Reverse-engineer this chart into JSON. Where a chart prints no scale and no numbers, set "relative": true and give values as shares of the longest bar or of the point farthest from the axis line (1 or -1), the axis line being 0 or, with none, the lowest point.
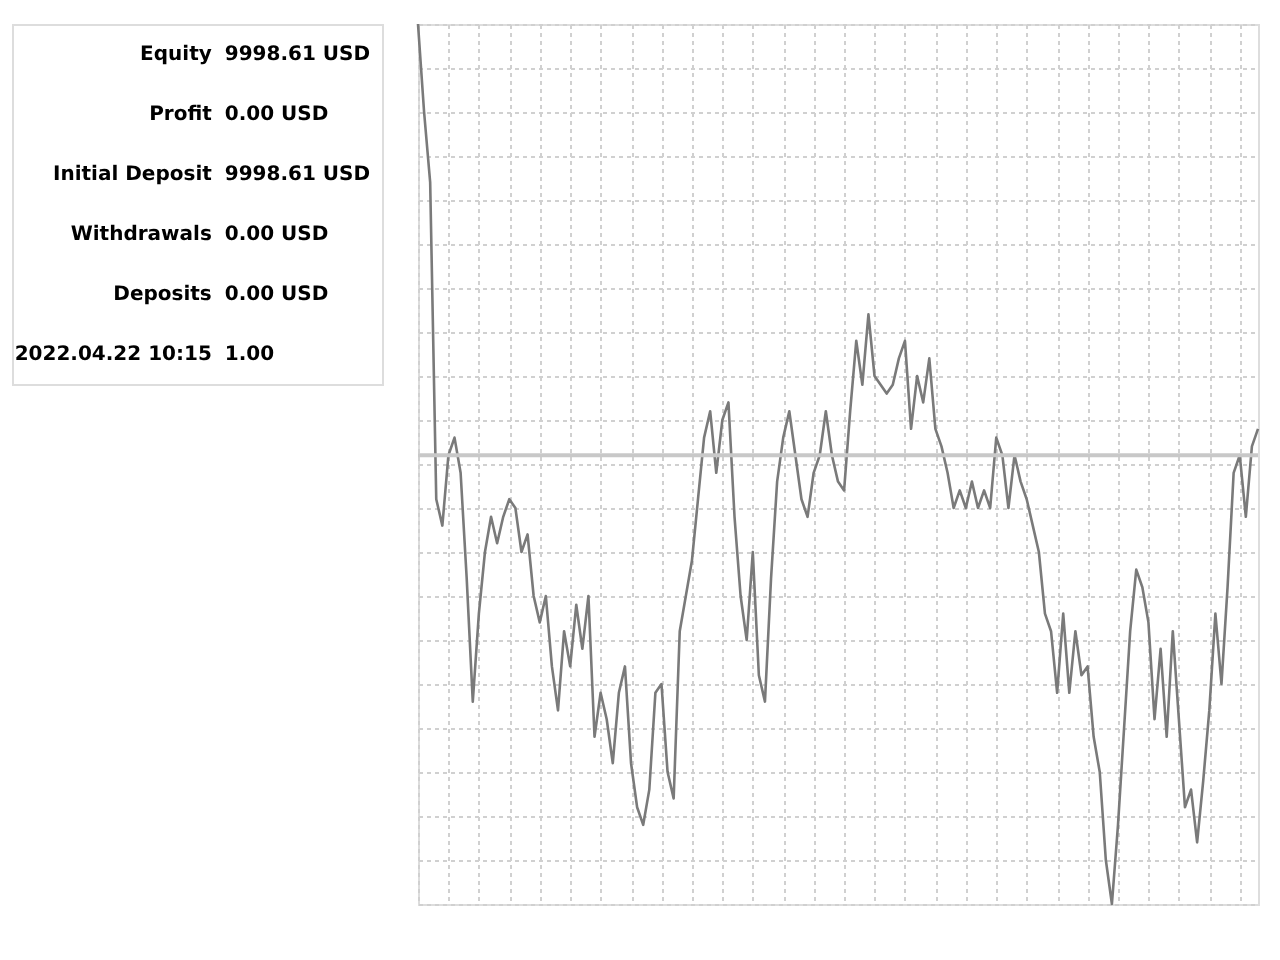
{
  "chart_data": [
    {
      "type": "other",
      "annotations": [
        "Equity",
        "9998.61 USD",
        "Profit",
        "0.00 USD",
        "Initial Deposit",
        "9998.61 USD",
        "Withdrawals",
        "0.00 USD",
        "Deposits",
        "0.00 USD",
        "2022.04.22 10:15",
        "1.00"
      ]
    },
    {
      "type": "line",
      "relative": true,
      "grid": true,
      "color": "#7a7a7a",
      "categories": [
        null,
        null,
        null,
        null,
        null,
        null,
        null,
        null,
        null,
        null,
        null,
        null,
        null,
        null,
        null,
        null,
        null,
        null,
        null,
        null,
        null,
        null,
        null,
        null,
        null,
        null,
        null,
        null,
        null,
        null,
        null,
        null,
        null,
        null,
        null,
        null,
        null,
        null,
        null,
        null,
        null,
        null,
        null,
        null,
        null,
        null,
        null,
        null,
        null,
        null,
        null,
        null,
        null,
        null,
        null,
        null,
        null,
        null,
        null,
        null,
        null,
        null,
        null,
        null,
        null,
        null,
        null,
        null,
        null,
        null,
        null,
        null,
        null,
        null,
        null,
        null,
        null,
        null,
        null,
        null,
        null,
        null,
        null,
        null,
        null,
        null,
        null,
        null,
        null,
        null,
        null,
        null,
        null,
        null,
        null,
        null,
        null,
        null,
        null,
        null,
        null,
        null,
        null,
        null,
        null,
        null,
        null,
        null,
        null,
        null,
        null,
        null,
        null,
        null,
        null,
        null,
        null,
        null,
        null,
        null,
        null,
        null,
        null,
        null,
        null,
        null,
        null,
        null,
        null,
        null,
        null,
        null,
        null,
        null,
        null,
        null,
        null,
        null,
        null
      ],
      "values": [
        1.0,
        0.9,
        0.82,
        0.46,
        0.43,
        0.51,
        0.53,
        0.49,
        0.37,
        0.23,
        0.33,
        0.4,
        0.44,
        0.41,
        0.44,
        0.46,
        0.45,
        0.4,
        0.42,
        0.35,
        0.32,
        0.35,
        0.27,
        0.22,
        0.31,
        0.27,
        0.34,
        0.29,
        0.35,
        0.19,
        0.24,
        0.21,
        0.16,
        0.24,
        0.27,
        0.16,
        0.11,
        0.09,
        0.13,
        0.24,
        0.25,
        0.15,
        0.12,
        0.31,
        0.35,
        0.39,
        0.46,
        0.53,
        0.56,
        0.49,
        0.55,
        0.57,
        0.44,
        0.35,
        0.3,
        0.4,
        0.26,
        0.23,
        0.37,
        0.48,
        0.53,
        0.56,
        0.51,
        0.46,
        0.44,
        0.49,
        0.51,
        0.56,
        0.51,
        0.48,
        0.47,
        0.56,
        0.64,
        0.59,
        0.67,
        0.6,
        0.59,
        0.58,
        0.59,
        0.62,
        0.64,
        0.54,
        0.6,
        0.57,
        0.62,
        0.54,
        0.52,
        0.49,
        0.45,
        0.47,
        0.45,
        0.48,
        0.45,
        0.47,
        0.45,
        0.53,
        0.51,
        0.45,
        0.51,
        0.48,
        0.46,
        0.43,
        0.4,
        0.33,
        0.31,
        0.24,
        0.33,
        0.24,
        0.31,
        0.26,
        0.27,
        0.19,
        0.15,
        0.05,
        0.0,
        0.09,
        0.2,
        0.31,
        0.38,
        0.36,
        0.32,
        0.21,
        0.29,
        0.19,
        0.31,
        0.21,
        0.11,
        0.13,
        0.07,
        0.14,
        0.22,
        0.33,
        0.25,
        0.36,
        0.49,
        0.51,
        0.44,
        0.52,
        0.54
      ],
      "ref_lines": [
        {
          "axis": "y",
          "value": 0.51,
          "color": "#c8c8c8"
        }
      ]
    }
  ]
}
